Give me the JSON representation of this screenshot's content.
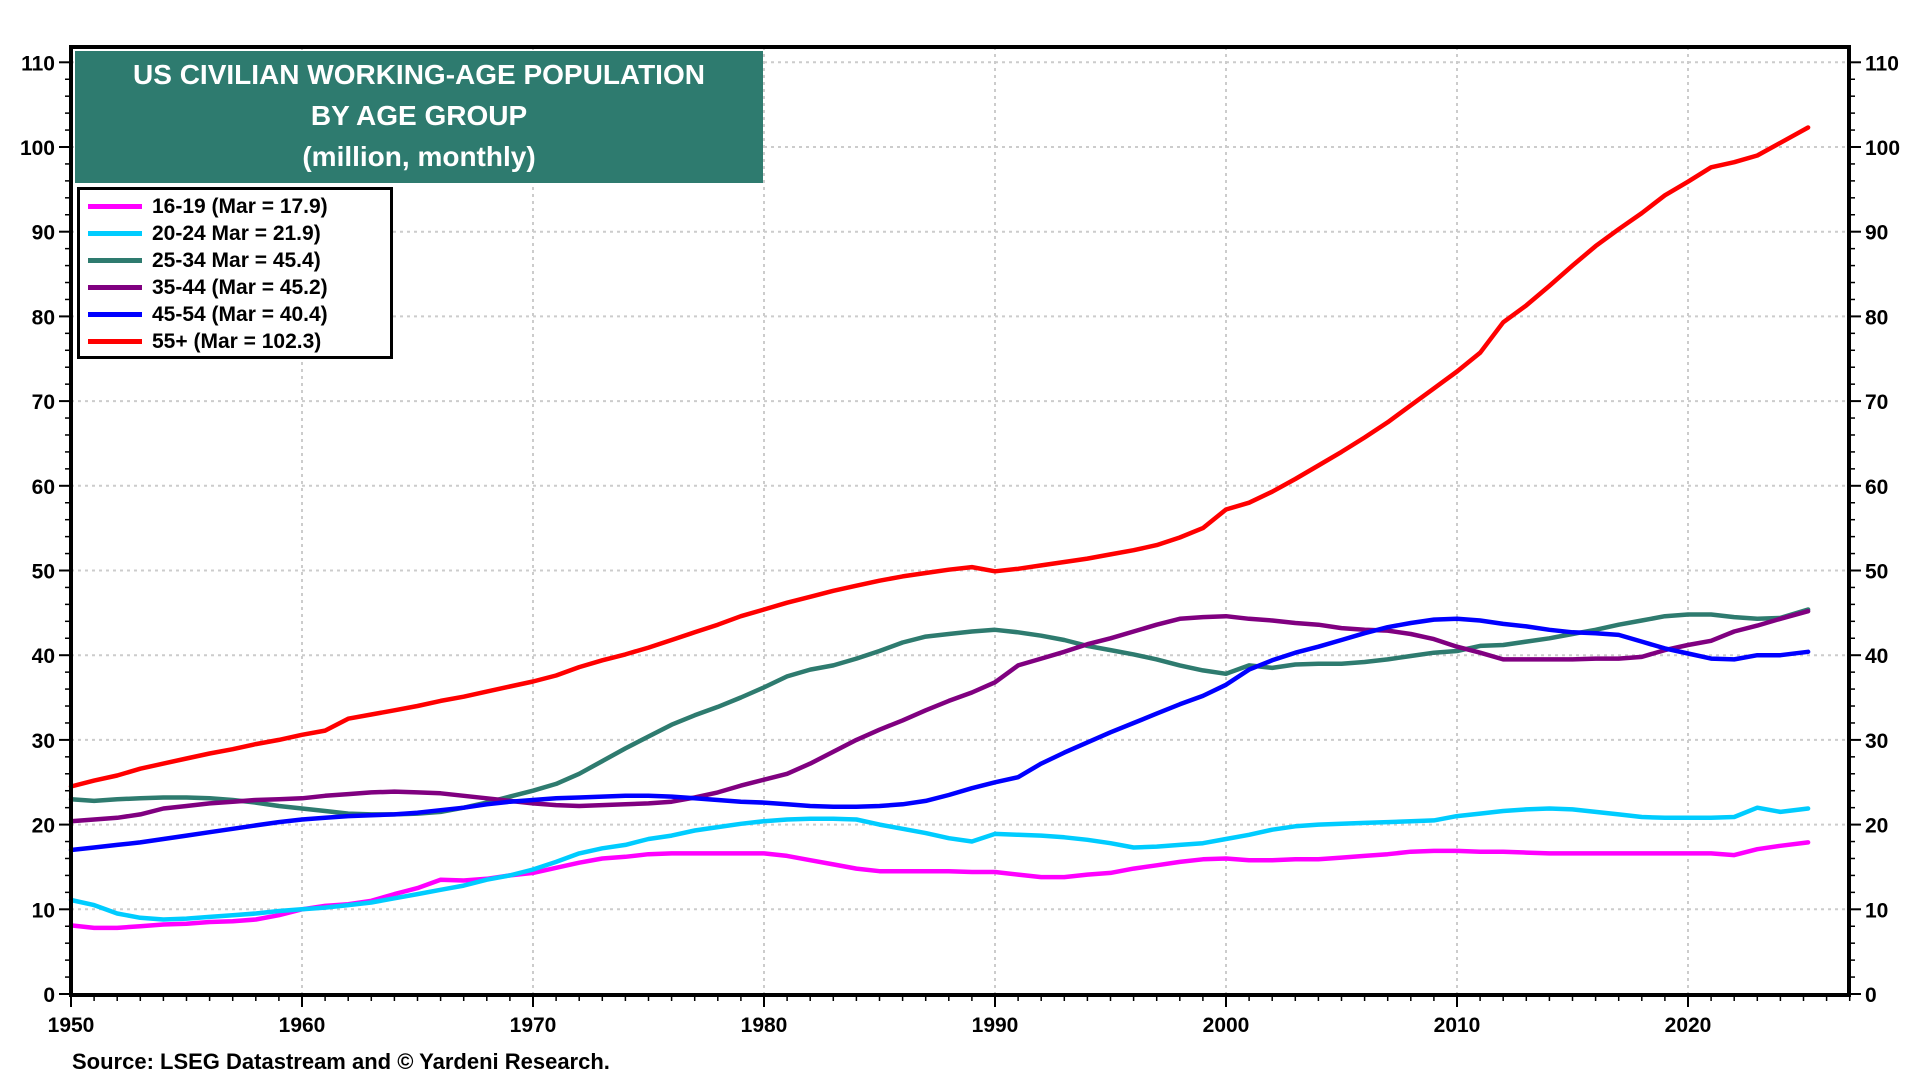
{
  "chart_data": {
    "type": "line",
    "title": "US CIVILIAN WORKING-AGE POPULATION",
    "title_line2": "BY AGE GROUP",
    "subtitle": "(million, monthly)",
    "xlabel": "",
    "ylabel": "",
    "xlim": [
      1950,
      2027
    ],
    "ylim": [
      0,
      110
    ],
    "x_ticks": [
      1950,
      1960,
      1970,
      1980,
      1990,
      2000,
      2010,
      2020
    ],
    "y_ticks": [
      0,
      10,
      20,
      30,
      40,
      50,
      60,
      70,
      80,
      90,
      100,
      110
    ],
    "grid": true,
    "legend_position": "top-left",
    "source": "Source: LSEG Datastream and © Yardeni Research.",
    "x": [
      1950,
      1951,
      1952,
      1953,
      1954,
      1955,
      1956,
      1957,
      1958,
      1959,
      1960,
      1961,
      1962,
      1963,
      1964,
      1965,
      1966,
      1967,
      1968,
      1969,
      1970,
      1971,
      1972,
      1973,
      1974,
      1975,
      1976,
      1977,
      1978,
      1979,
      1980,
      1981,
      1982,
      1983,
      1984,
      1985,
      1986,
      1987,
      1988,
      1989,
      1990,
      1991,
      1992,
      1993,
      1994,
      1995,
      1996,
      1997,
      1998,
      1999,
      2000,
      2001,
      2002,
      2003,
      2004,
      2005,
      2006,
      2007,
      2008,
      2009,
      2010,
      2011,
      2012,
      2013,
      2014,
      2015,
      2016,
      2017,
      2018,
      2019,
      2020,
      2021,
      2022,
      2023,
      2024,
      2025.2
    ],
    "series": [
      {
        "name": "16-19 (Mar = 17.9)",
        "color": "#ff00ff",
        "values": [
          8.1,
          7.8,
          7.8,
          8.0,
          8.2,
          8.3,
          8.5,
          8.6,
          8.8,
          9.3,
          10.0,
          10.4,
          10.6,
          11.0,
          11.8,
          12.5,
          13.5,
          13.4,
          13.6,
          14.0,
          14.3,
          14.9,
          15.5,
          16.0,
          16.2,
          16.5,
          16.6,
          16.6,
          16.6,
          16.6,
          16.6,
          16.3,
          15.8,
          15.3,
          14.8,
          14.5,
          14.5,
          14.5,
          14.5,
          14.4,
          14.4,
          14.1,
          13.8,
          13.8,
          14.1,
          14.3,
          14.8,
          15.2,
          15.6,
          15.9,
          16.0,
          15.8,
          15.8,
          15.9,
          15.9,
          16.1,
          16.3,
          16.5,
          16.8,
          16.9,
          16.9,
          16.8,
          16.8,
          16.7,
          16.6,
          16.6,
          16.6,
          16.6,
          16.6,
          16.6,
          16.6,
          16.6,
          16.4,
          17.1,
          17.5,
          17.9
        ]
      },
      {
        "name": "20-24 Mar = 21.9)",
        "color": "#00ccff",
        "values": [
          11.1,
          10.5,
          9.5,
          9.0,
          8.8,
          8.9,
          9.1,
          9.3,
          9.5,
          9.8,
          10.0,
          10.2,
          10.5,
          10.8,
          11.3,
          11.8,
          12.3,
          12.8,
          13.5,
          14.0,
          14.7,
          15.6,
          16.6,
          17.2,
          17.6,
          18.3,
          18.7,
          19.3,
          19.7,
          20.1,
          20.4,
          20.6,
          20.7,
          20.7,
          20.6,
          20.0,
          19.5,
          19.0,
          18.4,
          18.0,
          18.9,
          18.8,
          18.7,
          18.5,
          18.2,
          17.8,
          17.3,
          17.4,
          17.6,
          17.8,
          18.3,
          18.8,
          19.4,
          19.8,
          20.0,
          20.1,
          20.2,
          20.3,
          20.4,
          20.5,
          21.0,
          21.3,
          21.6,
          21.8,
          21.9,
          21.8,
          21.5,
          21.2,
          20.9,
          20.8,
          20.8,
          20.8,
          20.9,
          22.0,
          21.5,
          21.9
        ]
      },
      {
        "name": "25-34 Mar = 45.4)",
        "color": "#2e7b6f",
        "values": [
          23.0,
          22.8,
          23.0,
          23.1,
          23.2,
          23.2,
          23.1,
          22.9,
          22.6,
          22.2,
          21.9,
          21.6,
          21.3,
          21.2,
          21.2,
          21.3,
          21.5,
          22.0,
          22.6,
          23.3,
          24.0,
          24.8,
          26.0,
          27.5,
          29.0,
          30.4,
          31.8,
          32.9,
          33.9,
          35.0,
          36.2,
          37.5,
          38.3,
          38.8,
          39.6,
          40.5,
          41.5,
          42.2,
          42.5,
          42.8,
          43.0,
          42.7,
          42.3,
          41.8,
          41.1,
          40.6,
          40.1,
          39.5,
          38.8,
          38.2,
          37.8,
          38.8,
          38.5,
          38.9,
          39.0,
          39.0,
          39.2,
          39.5,
          39.9,
          40.3,
          40.5,
          41.1,
          41.2,
          41.6,
          42.0,
          42.5,
          43.0,
          43.6,
          44.1,
          44.6,
          44.8,
          44.8,
          44.5,
          44.3,
          44.4,
          45.4
        ]
      },
      {
        "name": "35-44 (Mar = 45.2)",
        "color": "#800080",
        "values": [
          20.4,
          20.6,
          20.8,
          21.2,
          21.9,
          22.2,
          22.5,
          22.7,
          22.9,
          23.0,
          23.1,
          23.4,
          23.6,
          23.8,
          23.9,
          23.8,
          23.7,
          23.4,
          23.1,
          22.8,
          22.5,
          22.3,
          22.2,
          22.3,
          22.4,
          22.5,
          22.7,
          23.2,
          23.8,
          24.6,
          25.3,
          26.0,
          27.2,
          28.6,
          30.0,
          31.2,
          32.3,
          33.5,
          34.6,
          35.6,
          36.8,
          38.8,
          39.6,
          40.4,
          41.3,
          42.0,
          42.8,
          43.6,
          44.3,
          44.5,
          44.6,
          44.3,
          44.1,
          43.8,
          43.6,
          43.2,
          43.0,
          42.9,
          42.5,
          41.9,
          41.0,
          40.3,
          39.5,
          39.5,
          39.5,
          39.5,
          39.6,
          39.6,
          39.8,
          40.6,
          41.2,
          41.7,
          42.8,
          43.5,
          44.3,
          45.2
        ]
      },
      {
        "name": "45-54 (Mar = 40.4)",
        "color": "#0000ff",
        "values": [
          17.0,
          17.3,
          17.6,
          17.9,
          18.3,
          18.7,
          19.1,
          19.5,
          19.9,
          20.3,
          20.6,
          20.8,
          21.0,
          21.1,
          21.2,
          21.4,
          21.7,
          22.0,
          22.4,
          22.7,
          22.9,
          23.1,
          23.2,
          23.3,
          23.4,
          23.4,
          23.3,
          23.1,
          22.9,
          22.7,
          22.6,
          22.4,
          22.2,
          22.1,
          22.1,
          22.2,
          22.4,
          22.8,
          23.5,
          24.3,
          25.0,
          25.6,
          27.2,
          28.5,
          29.7,
          30.9,
          32.0,
          33.1,
          34.2,
          35.2,
          36.5,
          38.3,
          39.4,
          40.3,
          41.0,
          41.8,
          42.6,
          43.3,
          43.8,
          44.2,
          44.3,
          44.1,
          43.7,
          43.4,
          43.0,
          42.7,
          42.6,
          42.4,
          41.6,
          40.8,
          40.2,
          39.6,
          39.5,
          40.0,
          40.0,
          40.4
        ]
      },
      {
        "name": "55+ (Mar = 102.3)",
        "color": "#ff0000",
        "values": [
          24.5,
          25.2,
          25.8,
          26.6,
          27.2,
          27.8,
          28.4,
          28.9,
          29.5,
          30.0,
          30.6,
          31.1,
          32.5,
          33.0,
          33.5,
          34.0,
          34.6,
          35.1,
          35.7,
          36.3,
          36.9,
          37.6,
          38.6,
          39.4,
          40.1,
          40.9,
          41.8,
          42.7,
          43.6,
          44.6,
          45.4,
          46.2,
          46.9,
          47.6,
          48.2,
          48.8,
          49.3,
          49.7,
          50.1,
          50.4,
          49.9,
          50.2,
          50.6,
          51.0,
          51.4,
          51.9,
          52.4,
          53.0,
          53.9,
          55.0,
          57.2,
          58.0,
          59.3,
          60.8,
          62.4,
          64.0,
          65.7,
          67.5,
          69.5,
          71.5,
          73.5,
          75.7,
          79.3,
          81.3,
          83.6,
          86.0,
          88.3,
          90.3,
          92.2,
          94.3,
          95.9,
          97.6,
          98.2,
          99.0,
          100.5,
          102.3
        ]
      }
    ]
  }
}
